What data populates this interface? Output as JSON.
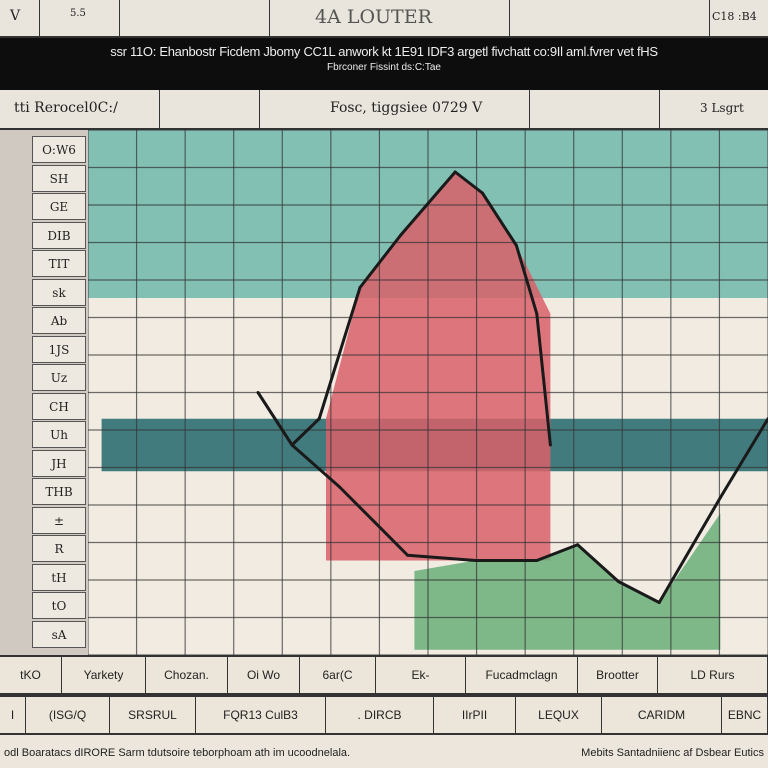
{
  "header": {
    "corner_left": "V",
    "small_left": "5.5",
    "title": "4A LOUTER",
    "corner_right": "C18 :B4"
  },
  "banner": {
    "title": "ssr 11O: Ehanbostr Ficdem Jbomy CC1L anwork kt 1E91 IDF3 argetl fivchatt co:9Il aml.fvrer vet fHS",
    "subtitle": "Fbrconer Fissint ds:C:Tae"
  },
  "subheader": {
    "left": "tti Rerocel0C:/",
    "center": "Fosc, tiggsiee 0729 V",
    "right": "3 Lsgrt"
  },
  "y_labels": [
    "O:W6",
    "SH",
    "GE",
    "DIB",
    "TIT",
    "sk",
    "Ab",
    "1JS",
    "Uz",
    "CH",
    "Uh",
    "JH",
    "THB",
    "±",
    "R",
    "tH",
    "tO",
    "sA"
  ],
  "bottom_row1": [
    "tKO",
    "Yarkety",
    "Chozan.",
    "Oi  Wo",
    "6ar(C",
    "Ek-",
    "Fucadmclagn",
    "Brootter",
    "LD Rurs"
  ],
  "bottom_row2": [
    "I",
    "(ISG/Q",
    "SRSRUL",
    "FQR13 CulB3",
    ". DIRCB",
    "IIrPII",
    "LEQUX",
    "CARIDM",
    "EBNC"
  ],
  "footer": {
    "left": "odl Boaratacs dIRORE Sarm tdutsoire teborphoam ath im ucoodnelala.",
    "right": "Mebits Santadniienc af Dsbear Eutics"
  },
  "colors": {
    "teal": "#6fb8ab",
    "dark_teal": "#2f6f73",
    "red": "#d9606a",
    "green": "#6aae78",
    "line": "#1a1a1a"
  },
  "chart_data": {
    "type": "line",
    "xlim": [
      0,
      100
    ],
    "ylim": [
      0,
      100
    ],
    "grid": true,
    "series": [
      {
        "name": "line-a",
        "x": [
          25,
          30,
          34,
          40,
          46,
          54,
          58,
          63,
          66,
          68
        ],
        "y": [
          50,
          40,
          45,
          70,
          80,
          92,
          88,
          78,
          65,
          40
        ]
      },
      {
        "name": "line-b",
        "x": [
          30,
          37,
          47,
          57,
          66,
          72,
          78,
          84,
          93,
          100
        ],
        "y": [
          40,
          32,
          19,
          18,
          18,
          21,
          14,
          10,
          30,
          45
        ]
      }
    ],
    "areas": [
      {
        "name": "teal-band",
        "y_from": 68,
        "y_to": 100
      },
      {
        "name": "dark-teal-band",
        "y_from": 35,
        "y_to": 45
      },
      {
        "name": "red-peak",
        "x": [
          35,
          40,
          46,
          54,
          58,
          63,
          68,
          68,
          35
        ],
        "y": [
          45,
          70,
          80,
          92,
          88,
          78,
          65,
          18,
          18
        ]
      },
      {
        "name": "green-area",
        "x": [
          48,
          57,
          66,
          72,
          78,
          84,
          93,
          93,
          48
        ],
        "y": [
          16,
          18,
          18,
          21,
          14,
          10,
          27,
          1,
          1
        ]
      }
    ]
  }
}
